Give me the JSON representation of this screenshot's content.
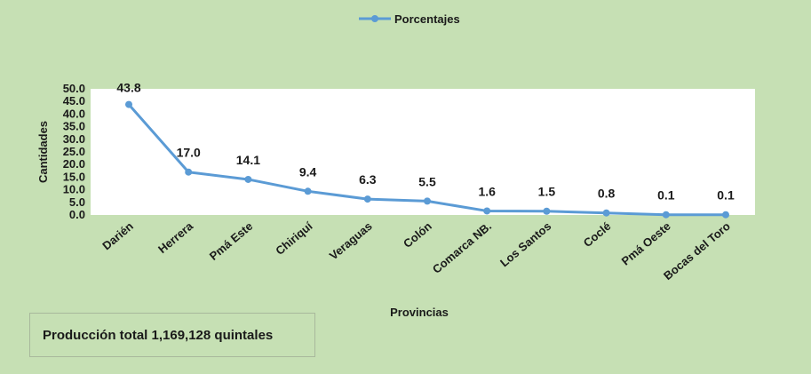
{
  "note": "Producción total 1,169,128 quintales",
  "colors": {
    "background": "#c6e0b4",
    "plot_area": "#ffffff",
    "series": "#5b9bd5",
    "text": "#1a1a1a"
  },
  "chart_data": {
    "type": "line",
    "title": "",
    "xlabel": "Provincias",
    "ylabel": "Cantidades",
    "ylim": [
      0,
      50
    ],
    "yticks": [
      "0.0",
      "5.0",
      "10.0",
      "15.0",
      "20.0",
      "25.0",
      "30.0",
      "35.0",
      "40.0",
      "45.0",
      "50.0"
    ],
    "ytick_values": [
      0,
      5,
      10,
      15,
      20,
      25,
      30,
      35,
      40,
      45,
      50
    ],
    "grid": false,
    "legend": "top-center",
    "categories": [
      "Darién",
      "Herrera",
      "Pmá Este",
      "Chiriquí",
      "Veraguas",
      "Colón",
      "Comarca NB.",
      "Los Santos",
      "Coclé",
      "Pmá Oeste",
      "Bocas del Toro"
    ],
    "series": [
      {
        "name": "Porcentajes",
        "values": [
          43.8,
          17.0,
          14.1,
          9.4,
          6.3,
          5.5,
          1.6,
          1.5,
          0.8,
          0.1,
          0.1
        ],
        "labels": [
          "43.8",
          "17.0",
          "14.1",
          "9.4",
          "6.3",
          "5.5",
          "1.6",
          "1.5",
          "0.8",
          "0.1",
          "0.1"
        ]
      }
    ]
  }
}
